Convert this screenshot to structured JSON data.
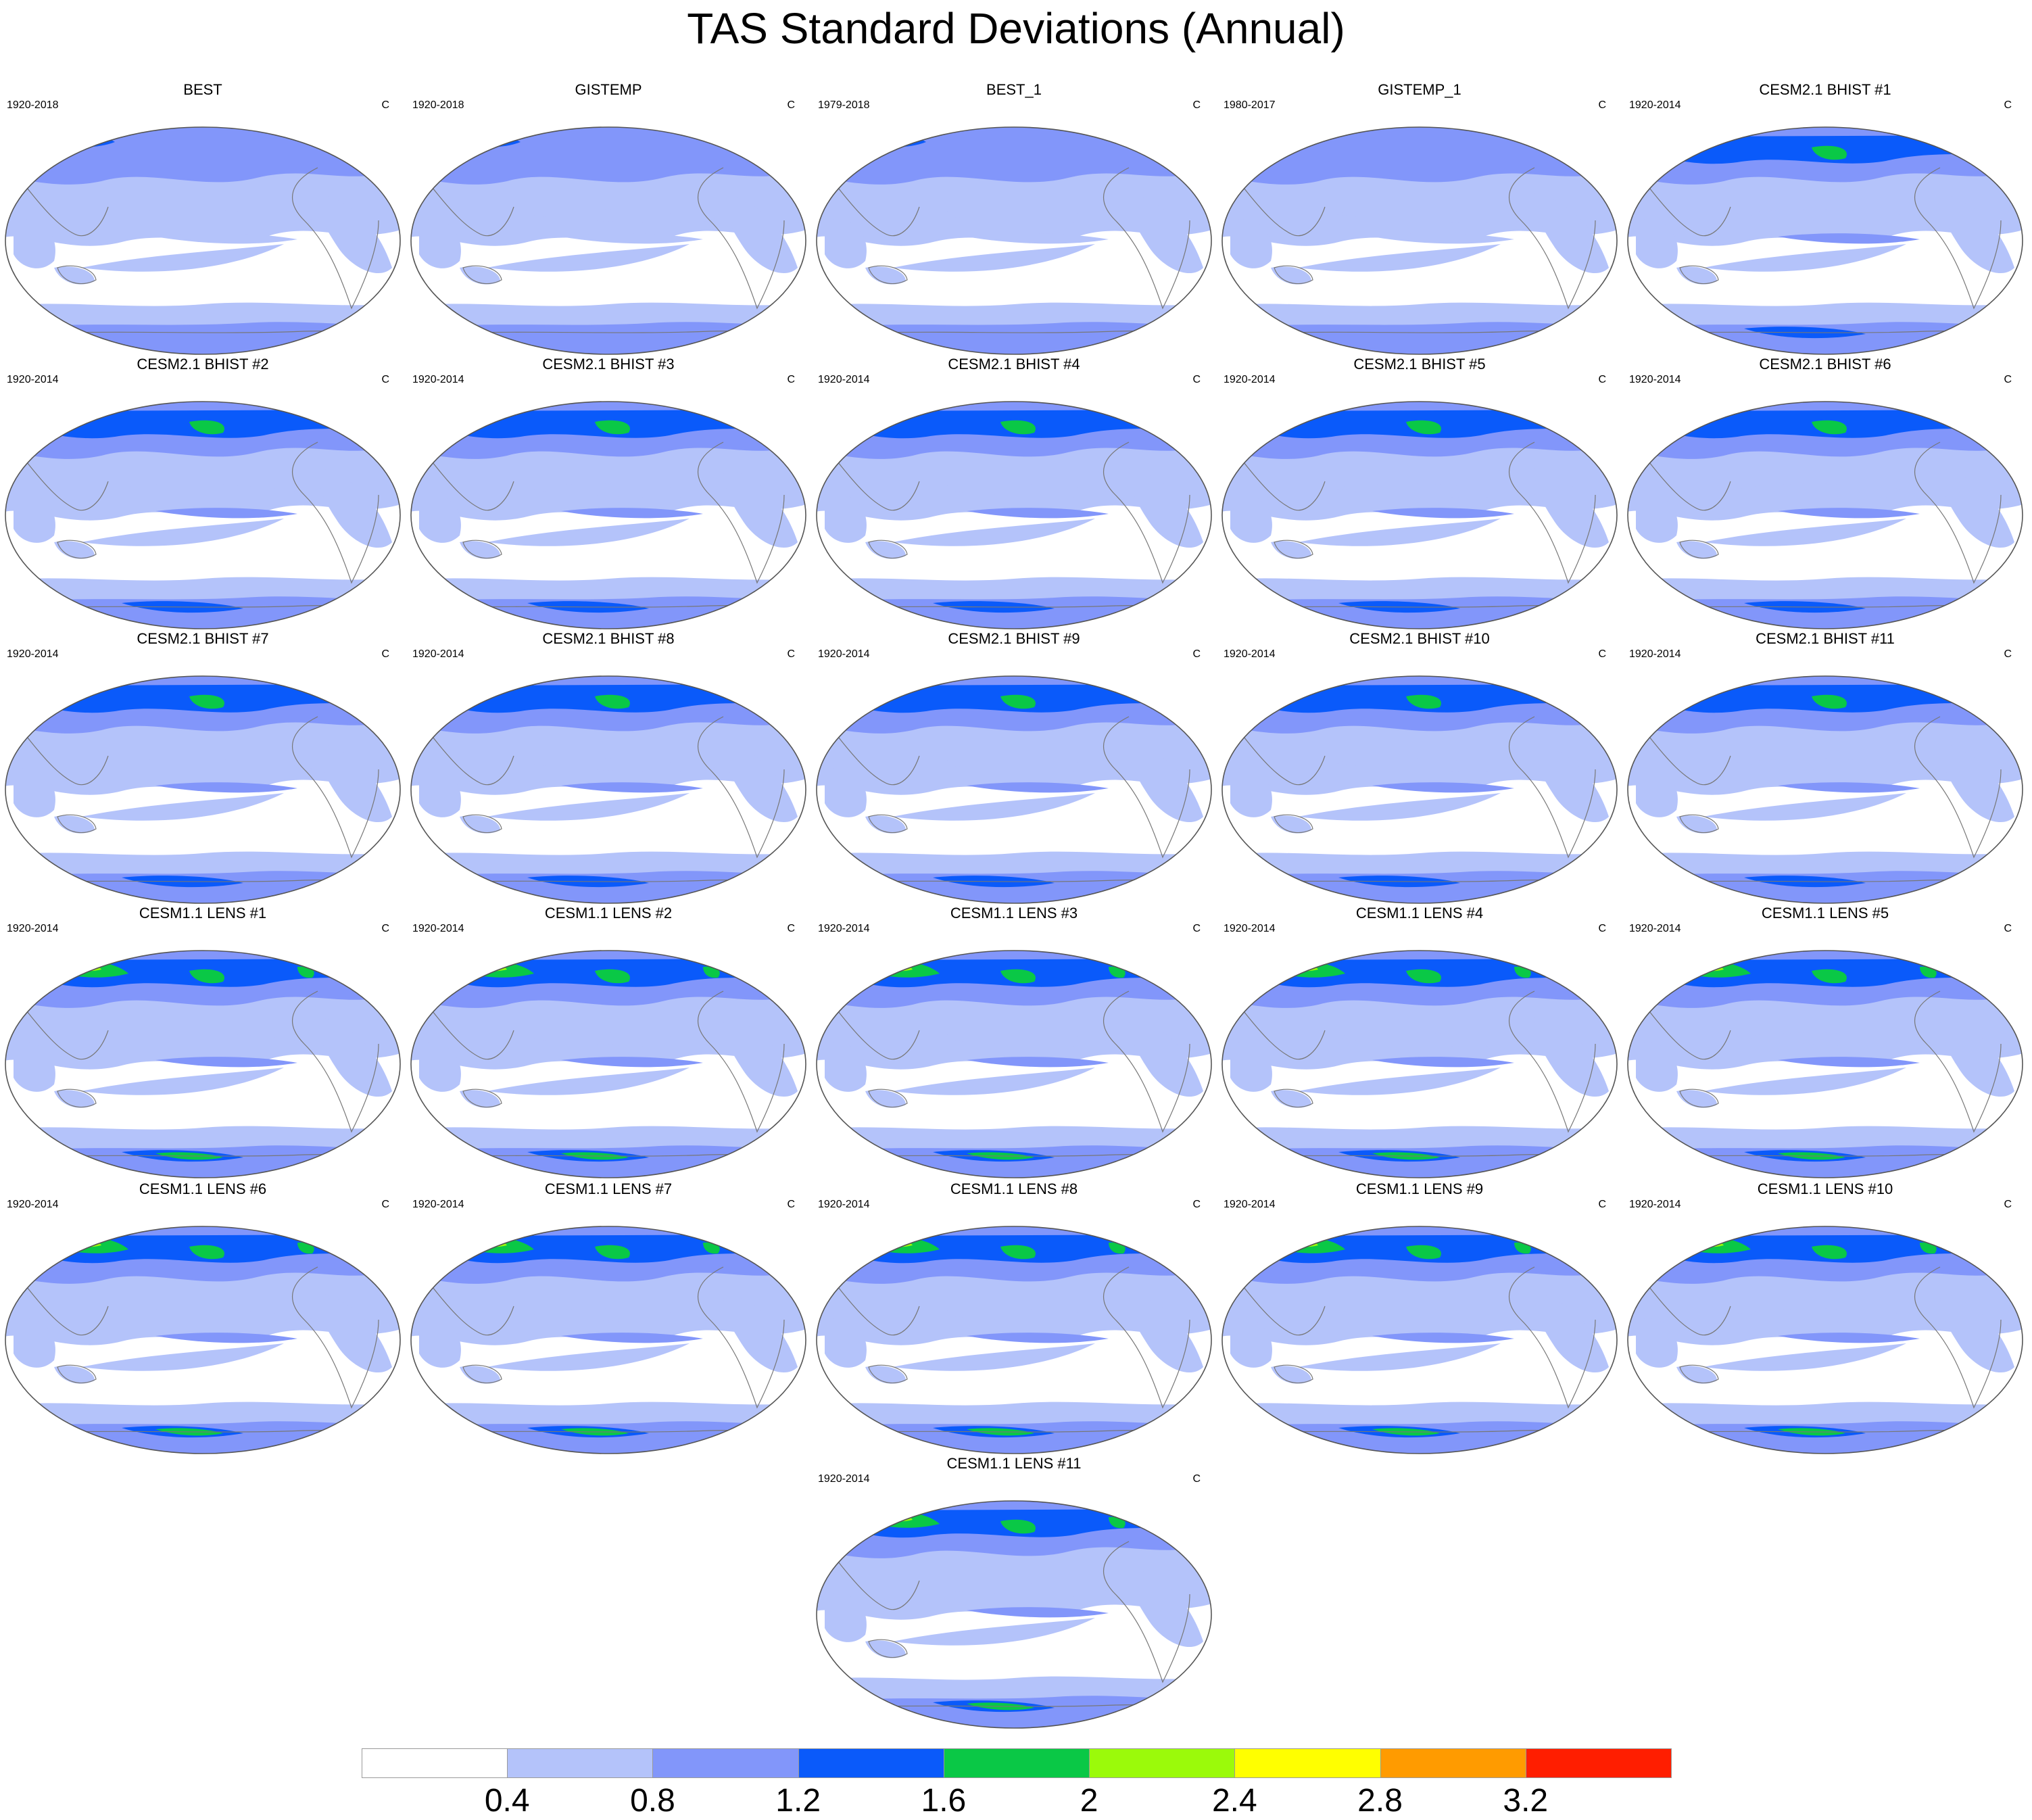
{
  "title": "TAS Standard Deviations (Annual)",
  "units": "C",
  "colorbar": {
    "levels": [
      "0.4",
      "0.8",
      "1.2",
      "1.6",
      "2",
      "2.4",
      "2.8",
      "3.2"
    ],
    "colors": [
      "#ffffff",
      "#b4c3fa",
      "#8296fa",
      "#0a5afa",
      "#0ac846",
      "#9bfa0a",
      "#ffff00",
      "#ff9b00",
      "#ff1e00"
    ]
  },
  "map_colors": {
    "ocean": "#ffffff",
    "coastline": "#777777",
    "outline": "#555555"
  },
  "panels": [
    {
      "title": "BEST",
      "period": "1920-2018",
      "units": "C",
      "intensity": 1,
      "start_year": 1920,
      "end_year": 2018
    },
    {
      "title": "GISTEMP",
      "period": "1920-2018",
      "units": "C",
      "intensity": 1,
      "start_year": 1920,
      "end_year": 2018
    },
    {
      "title": "BEST_1",
      "period": "1979-2018",
      "units": "C",
      "intensity": 1,
      "start_year": 1979,
      "end_year": 2018
    },
    {
      "title": "GISTEMP_1",
      "period": "1980-2017",
      "units": "C",
      "intensity": 0.8,
      "start_year": 1980,
      "end_year": 2017
    },
    {
      "title": "CESM2.1 BHIST #1",
      "period": "1920-2014",
      "units": "C",
      "intensity": 2,
      "start_year": 1920,
      "end_year": 2014
    },
    {
      "title": "CESM2.1 BHIST #2",
      "period": "1920-2014",
      "units": "C",
      "intensity": 2,
      "start_year": 1920,
      "end_year": 2014
    },
    {
      "title": "CESM2.1 BHIST #3",
      "period": "1920-2014",
      "units": "C",
      "intensity": 2,
      "start_year": 1920,
      "end_year": 2014
    },
    {
      "title": "CESM2.1 BHIST #4",
      "period": "1920-2014",
      "units": "C",
      "intensity": 2,
      "start_year": 1920,
      "end_year": 2014
    },
    {
      "title": "CESM2.1 BHIST #5",
      "period": "1920-2014",
      "units": "C",
      "intensity": 2,
      "start_year": 1920,
      "end_year": 2014
    },
    {
      "title": "CESM2.1 BHIST #6",
      "period": "1920-2014",
      "units": "C",
      "intensity": 2,
      "start_year": 1920,
      "end_year": 2014
    },
    {
      "title": "CESM2.1 BHIST #7",
      "period": "1920-2014",
      "units": "C",
      "intensity": 2,
      "start_year": 1920,
      "end_year": 2014
    },
    {
      "title": "CESM2.1 BHIST #8",
      "period": "1920-2014",
      "units": "C",
      "intensity": 2,
      "start_year": 1920,
      "end_year": 2014
    },
    {
      "title": "CESM2.1 BHIST #9",
      "period": "1920-2014",
      "units": "C",
      "intensity": 2,
      "start_year": 1920,
      "end_year": 2014
    },
    {
      "title": "CESM2.1 BHIST #10",
      "period": "1920-2014",
      "units": "C",
      "intensity": 2,
      "start_year": 1920,
      "end_year": 2014
    },
    {
      "title": "CESM2.1 BHIST #11",
      "period": "1920-2014",
      "units": "C",
      "intensity": 2,
      "start_year": 1920,
      "end_year": 2014
    },
    {
      "title": "CESM1.1 LENS #1",
      "period": "1920-2014",
      "units": "C",
      "intensity": 3,
      "start_year": 1920,
      "end_year": 2014
    },
    {
      "title": "CESM1.1 LENS #2",
      "period": "1920-2014",
      "units": "C",
      "intensity": 3,
      "start_year": 1920,
      "end_year": 2014
    },
    {
      "title": "CESM1.1 LENS #3",
      "period": "1920-2014",
      "units": "C",
      "intensity": 3,
      "start_year": 1920,
      "end_year": 2014
    },
    {
      "title": "CESM1.1 LENS #4",
      "period": "1920-2014",
      "units": "C",
      "intensity": 3,
      "start_year": 1920,
      "end_year": 2014
    },
    {
      "title": "CESM1.1 LENS #5",
      "period": "1920-2014",
      "units": "C",
      "intensity": 3,
      "start_year": 1920,
      "end_year": 2014
    },
    {
      "title": "CESM1.1 LENS #6",
      "period": "1920-2014",
      "units": "C",
      "intensity": 3,
      "start_year": 1920,
      "end_year": 2014
    },
    {
      "title": "CESM1.1 LENS #7",
      "period": "1920-2014",
      "units": "C",
      "intensity": 3,
      "start_year": 1920,
      "end_year": 2014
    },
    {
      "title": "CESM1.1 LENS #8",
      "period": "1920-2014",
      "units": "C",
      "intensity": 3,
      "start_year": 1920,
      "end_year": 2014
    },
    {
      "title": "CESM1.1 LENS #9",
      "period": "1920-2014",
      "units": "C",
      "intensity": 3,
      "start_year": 1920,
      "end_year": 2014
    },
    {
      "title": "CESM1.1 LENS #10",
      "period": "1920-2014",
      "units": "C",
      "intensity": 3,
      "start_year": 1920,
      "end_year": 2014
    },
    {
      "title": "CESM1.1 LENS #11",
      "period": "1920-2014",
      "units": "C",
      "intensity": 3,
      "start_year": 1920,
      "end_year": 2014
    }
  ]
}
